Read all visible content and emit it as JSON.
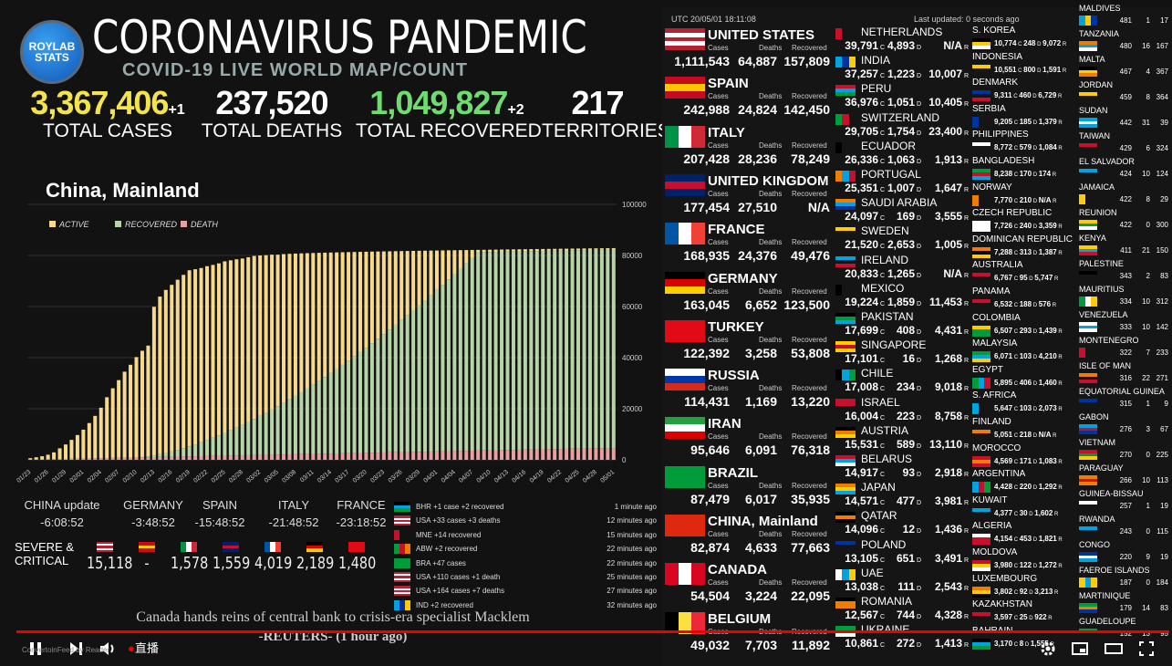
{
  "header": {
    "logo_text": "ROYLAB STATS",
    "title": "CORONAVIRUS PANDEMIC",
    "subtitle": "COVID-19 LIVE WORLD MAP/COUNT"
  },
  "totals": {
    "cases": {
      "value": "3,367,406",
      "inc": "+1",
      "label": "TOTAL CASES",
      "color": "#f4e44a"
    },
    "deaths": {
      "value": "237,520",
      "label": "TOTAL DEATHS",
      "color": "#ffffff"
    },
    "recovered": {
      "value": "1,049,827",
      "inc": "+2",
      "label": "TOTAL RECOVERED",
      "color": "#6fdc6f"
    },
    "territories": {
      "value": "217",
      "label": "TERRITORIES",
      "color": "#ffffff"
    }
  },
  "chart_data": {
    "type": "bar",
    "title": "China, Mainland",
    "legend": [
      "ACTIVE",
      "RECOVERED",
      "DEATH"
    ],
    "legend_colors": [
      "#f6d98a",
      "#b7d3a8",
      "#e8a0a0"
    ],
    "ylim": [
      0,
      100000
    ],
    "yticks": [
      "100000",
      "80000",
      "60000",
      "40000",
      "20000",
      "0"
    ],
    "xticks": [
      "01/23",
      "01/26",
      "01/29",
      "02/01",
      "02/04",
      "02/07",
      "02/10",
      "02/13",
      "02/16",
      "02/19",
      "02/22",
      "02/25",
      "02/28",
      "03/02",
      "03/05",
      "03/08",
      "03/11",
      "03/14",
      "03/17",
      "03/20",
      "03/23",
      "03/26",
      "03/29",
      "04/01",
      "04/04",
      "04/07",
      "04/10",
      "04/13",
      "04/16",
      "04/19",
      "04/22",
      "04/25",
      "04/28",
      "05/01"
    ],
    "total_series_start": [
      650,
      1000,
      1400,
      2000,
      2900,
      4500,
      6000,
      7800,
      9700,
      11800,
      14400,
      17200,
      20400,
      24500,
      28000,
      31200,
      34500,
      37200,
      40200,
      42700,
      44700,
      59900,
      63900,
      66500,
      68500,
      70500,
      72400,
      74200,
      74600,
      75100,
      75800,
      76300,
      76900,
      77700,
      78100,
      78500,
      78800,
      79300,
      79800,
      80000,
      80100,
      80300
    ],
    "final_total": 82874,
    "final_recovered": 77663,
    "final_deaths": 4633
  },
  "timezones": [
    {
      "name": "CHINA update",
      "time": "-6:08:52"
    },
    {
      "name": "GERMANY",
      "time": "-3:48:52"
    },
    {
      "name": "SPAIN",
      "time": "-15:48:52"
    },
    {
      "name": "ITALY",
      "time": "-21:48:52"
    },
    {
      "name": "FRANCE",
      "time": "-23:18:52"
    }
  ],
  "severe": {
    "label_line1": "SEVERE &",
    "label_line2": "CRITICAL",
    "values": [
      "15,118",
      "-",
      "1,578",
      "1,559",
      "4,019",
      "2,189",
      "1,480"
    ]
  },
  "feed": [
    {
      "text": "BHR +1 case +2 recovered",
      "time": "1 minute ago"
    },
    {
      "text": "USA +33 cases +3 deaths",
      "time": "12 minutes ago"
    },
    {
      "text": "MNE +14 recovered",
      "time": "15 minutes ago"
    },
    {
      "text": "ABW +2 recovered",
      "time": "22 minutes ago"
    },
    {
      "text": "BRA +47 cases",
      "time": "22 minutes ago"
    },
    {
      "text": "USA +110 cases +1 death",
      "time": "25 minutes ago"
    },
    {
      "text": "USA +164 cases +7 deaths",
      "time": "27 minutes ago"
    },
    {
      "text": "IND +2 recovered",
      "time": "32 minutes ago"
    }
  ],
  "news": {
    "headline": "Canada hands reins of central bank to crisis-era specialist Macklem",
    "source": "-REUTERS- (1 hour ago)"
  },
  "right_header": {
    "utc": "UTC 20/05/01 18:11:08",
    "updated": "Last updated: 0 seconds ago"
  },
  "labels": {
    "cases": "Cases",
    "deaths": "Deaths",
    "recovered": "Recovered"
  },
  "top_countries": [
    {
      "name": "UNITED STATES",
      "cases": "1,111,543",
      "deaths": "64,887",
      "recovered": "157,809"
    },
    {
      "name": "SPAIN",
      "cases": "242,988",
      "deaths": "24,824",
      "recovered": "142,450"
    },
    {
      "name": "ITALY",
      "cases": "207,428",
      "deaths": "28,236",
      "recovered": "78,249"
    },
    {
      "name": "UNITED KINGDOM",
      "cases": "177,454",
      "deaths": "27,510",
      "recovered": "N/A"
    },
    {
      "name": "FRANCE",
      "cases": "168,935",
      "deaths": "24,376",
      "recovered": "49,476"
    },
    {
      "name": "GERMANY",
      "cases": "163,045",
      "deaths": "6,652",
      "recovered": "123,500"
    },
    {
      "name": "TURKEY",
      "cases": "122,392",
      "deaths": "3,258",
      "recovered": "53,808"
    },
    {
      "name": "RUSSIA",
      "cases": "114,431",
      "deaths": "1,169",
      "recovered": "13,220"
    },
    {
      "name": "IRAN",
      "cases": "95,646",
      "deaths": "6,091",
      "recovered": "76,318"
    },
    {
      "name": "BRAZIL",
      "cases": "87,479",
      "deaths": "6,017",
      "recovered": "35,935"
    },
    {
      "name": "CHINA, Mainland",
      "cases": "82,874",
      "deaths": "4,633",
      "recovered": "77,663"
    },
    {
      "name": "CANADA",
      "cases": "54,504",
      "deaths": "3,224",
      "recovered": "22,095"
    },
    {
      "name": "BELGIUM",
      "cases": "49,032",
      "deaths": "7,703",
      "recovered": "11,892"
    }
  ],
  "mid_countries": [
    {
      "name": "NETHERLANDS",
      "cases": "39,791",
      "deaths": "4,893",
      "recovered": "N/A"
    },
    {
      "name": "INDIA",
      "cases": "37,257",
      "deaths": "1,223",
      "recovered": "10,007"
    },
    {
      "name": "PERU",
      "cases": "36,976",
      "deaths": "1,051",
      "recovered": "10,405"
    },
    {
      "name": "SWITZERLAND",
      "cases": "29,705",
      "deaths": "1,754",
      "recovered": "23,400"
    },
    {
      "name": "ECUADOR",
      "cases": "26,336",
      "deaths": "1,063",
      "recovered": "1,913"
    },
    {
      "name": "PORTUGAL",
      "cases": "25,351",
      "deaths": "1,007",
      "recovered": "1,647"
    },
    {
      "name": "SAUDI ARABIA",
      "cases": "24,097",
      "deaths": "169",
      "recovered": "3,555"
    },
    {
      "name": "SWEDEN",
      "cases": "21,520",
      "deaths": "2,653",
      "recovered": "1,005"
    },
    {
      "name": "IRELAND",
      "cases": "20,833",
      "deaths": "1,265",
      "recovered": "N/A"
    },
    {
      "name": "MEXICO",
      "cases": "19,224",
      "deaths": "1,859",
      "recovered": "11,453"
    },
    {
      "name": "PAKISTAN",
      "cases": "17,699",
      "deaths": "408",
      "recovered": "4,431"
    },
    {
      "name": "SINGAPORE",
      "cases": "17,101",
      "deaths": "16",
      "recovered": "1,268"
    },
    {
      "name": "CHILE",
      "cases": "17,008",
      "deaths": "234",
      "recovered": "9,018"
    },
    {
      "name": "ISRAEL",
      "cases": "16,004",
      "deaths": "223",
      "recovered": "8,758"
    },
    {
      "name": "AUSTRIA",
      "cases": "15,531",
      "deaths": "589",
      "recovered": "13,110"
    },
    {
      "name": "BELARUS",
      "cases": "14,917",
      "deaths": "93",
      "recovered": "2,918"
    },
    {
      "name": "JAPAN",
      "cases": "14,571",
      "deaths": "477",
      "recovered": "3,981"
    },
    {
      "name": "QATAR",
      "cases": "14,096",
      "deaths": "12",
      "recovered": "1,436"
    },
    {
      "name": "POLAND",
      "cases": "13,105",
      "deaths": "651",
      "recovered": "3,491"
    },
    {
      "name": "UAE",
      "cases": "13,038",
      "deaths": "111",
      "recovered": "2,543"
    },
    {
      "name": "ROMANIA",
      "cases": "12,567",
      "deaths": "744",
      "recovered": "4,328"
    },
    {
      "name": "UKRAINE",
      "cases": "10,861",
      "deaths": "272",
      "recovered": "1,413"
    }
  ],
  "small_countries": [
    {
      "name": "S. KOREA",
      "cases": "10,774",
      "deaths": "248",
      "recovered": "9,072"
    },
    {
      "name": "INDONESIA",
      "cases": "10,551",
      "deaths": "800",
      "recovered": "1,591"
    },
    {
      "name": "DENMARK",
      "cases": "9,311",
      "deaths": "460",
      "recovered": "6,729"
    },
    {
      "name": "SERBIA",
      "cases": "9,205",
      "deaths": "185",
      "recovered": "1,379"
    },
    {
      "name": "PHILIPPINES",
      "cases": "8,772",
      "deaths": "579",
      "recovered": "1,084"
    },
    {
      "name": "BANGLADESH",
      "cases": "8,238",
      "deaths": "170",
      "recovered": "174"
    },
    {
      "name": "NORWAY",
      "cases": "7,770",
      "deaths": "210",
      "recovered": "N/A"
    },
    {
      "name": "CZECH REPUBLIC",
      "cases": "7,726",
      "deaths": "240",
      "recovered": "3,359"
    },
    {
      "name": "DOMINICAN REPUBLIC",
      "cases": "7,288",
      "deaths": "313",
      "recovered": "1,387"
    },
    {
      "name": "AUSTRALIA",
      "cases": "6,767",
      "deaths": "95",
      "recovered": "5,747"
    },
    {
      "name": "PANAMA",
      "cases": "6,532",
      "deaths": "188",
      "recovered": "576"
    },
    {
      "name": "COLOMBIA",
      "cases": "6,507",
      "deaths": "293",
      "recovered": "1,439"
    },
    {
      "name": "MALAYSIA",
      "cases": "6,071",
      "deaths": "103",
      "recovered": "4,210"
    },
    {
      "name": "EGYPT",
      "cases": "5,895",
      "deaths": "406",
      "recovered": "1,460"
    },
    {
      "name": "S. AFRICA",
      "cases": "5,647",
      "deaths": "103",
      "recovered": "2,073"
    },
    {
      "name": "FINLAND",
      "cases": "5,051",
      "deaths": "218",
      "recovered": "N/A"
    },
    {
      "name": "MOROCCO",
      "cases": "4,569",
      "deaths": "171",
      "recovered": "1,083"
    },
    {
      "name": "ARGENTINA",
      "cases": "4,428",
      "deaths": "220",
      "recovered": "1,292"
    },
    {
      "name": "KUWAIT",
      "cases": "4,377",
      "deaths": "30",
      "recovered": "1,602"
    },
    {
      "name": "ALGERIA",
      "cases": "4,154",
      "deaths": "453",
      "recovered": "1,821"
    },
    {
      "name": "MOLDOVA",
      "cases": "3,980",
      "deaths": "122",
      "recovered": "1,272"
    },
    {
      "name": "LUXEMBOURG",
      "cases": "3,802",
      "deaths": "92",
      "recovered": "3,213"
    },
    {
      "name": "KAZAKHSTAN",
      "cases": "3,597",
      "deaths": "25",
      "recovered": "922"
    },
    {
      "name": "BAHRAIN",
      "cases": "3,170",
      "deaths": "8",
      "recovered": "1,555"
    }
  ],
  "xs_countries": [
    {
      "name": "MALDIVES",
      "cases": "481",
      "deaths": "1",
      "recovered": "17"
    },
    {
      "name": "TANZANIA",
      "cases": "480",
      "deaths": "16",
      "recovered": "167"
    },
    {
      "name": "MALTA",
      "cases": "467",
      "deaths": "4",
      "recovered": "367"
    },
    {
      "name": "JORDAN",
      "cases": "459",
      "deaths": "8",
      "recovered": "364"
    },
    {
      "name": "SUDAN",
      "cases": "442",
      "deaths": "31",
      "recovered": "39"
    },
    {
      "name": "TAIWAN",
      "cases": "429",
      "deaths": "6",
      "recovered": "324"
    },
    {
      "name": "EL SALVADOR",
      "cases": "424",
      "deaths": "10",
      "recovered": "124"
    },
    {
      "name": "JAMAICA",
      "cases": "422",
      "deaths": "8",
      "recovered": "29"
    },
    {
      "name": "REUNION",
      "cases": "422",
      "deaths": "0",
      "recovered": "300"
    },
    {
      "name": "KENYA",
      "cases": "411",
      "deaths": "21",
      "recovered": "150"
    },
    {
      "name": "PALESTINE",
      "cases": "343",
      "deaths": "2",
      "recovered": "83"
    },
    {
      "name": "MAURITIUS",
      "cases": "334",
      "deaths": "10",
      "recovered": "312"
    },
    {
      "name": "VENEZUELA",
      "cases": "333",
      "deaths": "10",
      "recovered": "142"
    },
    {
      "name": "MONTENEGRO",
      "cases": "322",
      "deaths": "7",
      "recovered": "233"
    },
    {
      "name": "ISLE OF MAN",
      "cases": "316",
      "deaths": "22",
      "recovered": "271"
    },
    {
      "name": "EQUATORIAL GUINEA",
      "cases": "315",
      "deaths": "1",
      "recovered": "9"
    },
    {
      "name": "GABON",
      "cases": "276",
      "deaths": "3",
      "recovered": "67"
    },
    {
      "name": "VIETNAM",
      "cases": "270",
      "deaths": "0",
      "recovered": "225"
    },
    {
      "name": "PARAGUAY",
      "cases": "266",
      "deaths": "10",
      "recovered": "113"
    },
    {
      "name": "GUINEA-BISSAU",
      "cases": "257",
      "deaths": "1",
      "recovered": "19"
    },
    {
      "name": "RWANDA",
      "cases": "243",
      "deaths": "0",
      "recovered": "115"
    },
    {
      "name": "CONGO",
      "cases": "220",
      "deaths": "9",
      "recovered": "19"
    },
    {
      "name": "FAEROE ISLANDS",
      "cases": "187",
      "deaths": "0",
      "recovered": "184"
    },
    {
      "name": "MARTINIQUE",
      "cases": "179",
      "deaths": "14",
      "recovered": "83"
    },
    {
      "name": "GUADELOUPE",
      "cases": "152",
      "deaths": "13",
      "recovered": "95"
    }
  ],
  "player": {
    "live_label": "直播",
    "watermark": "ConvertoinFeed by Reader"
  }
}
